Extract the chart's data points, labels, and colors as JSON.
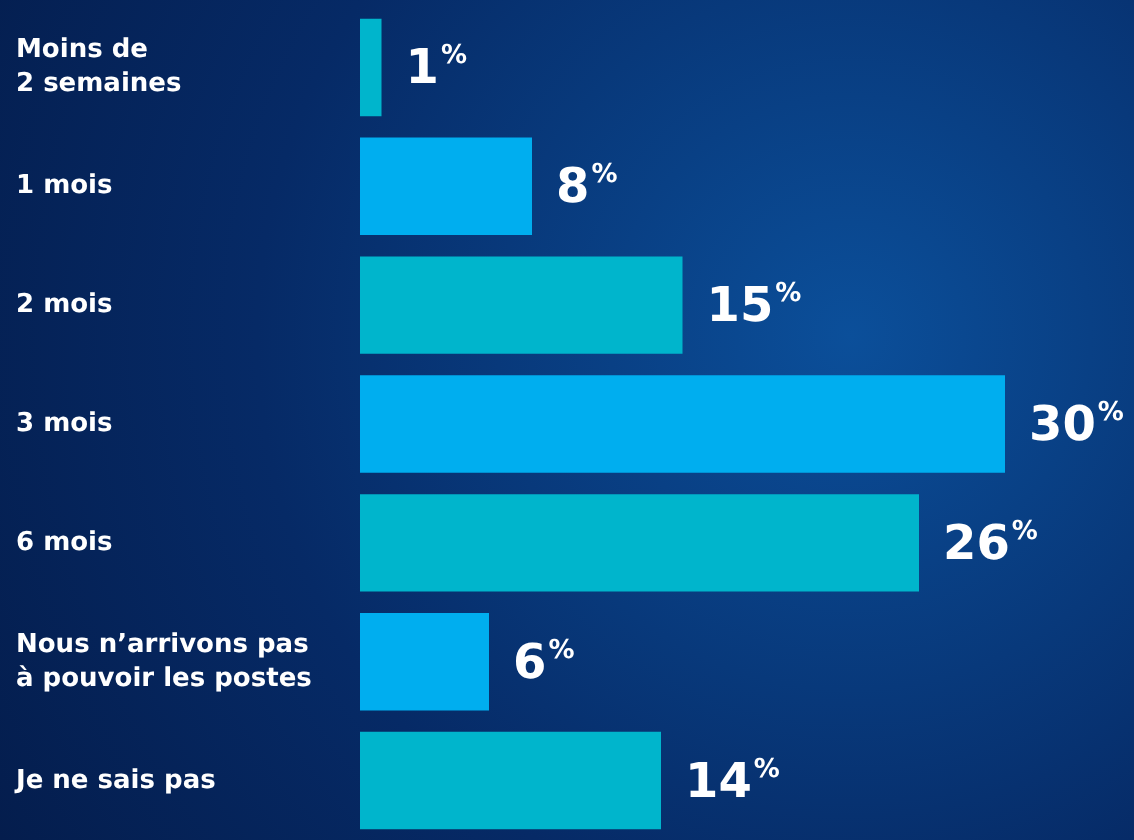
{
  "chart_data": {
    "type": "bar",
    "orientation": "horizontal",
    "categories": [
      "Moins de\n2 semaines",
      "1 mois",
      "2 mois",
      "3 mois",
      "6 mois",
      "Nous n’arrivons pas\nà pouvoir les postes",
      "Je ne sais pas"
    ],
    "values": [
      1,
      8,
      15,
      30,
      26,
      6,
      14
    ],
    "colors": [
      "#00b5cc",
      "#00aeef",
      "#00b5cc",
      "#00aeef",
      "#00b5cc",
      "#00aeef",
      "#00b5cc"
    ],
    "value_labels": [
      "1%",
      "8%",
      "15%",
      "30%",
      "26%",
      "6%",
      "14%"
    ]
  }
}
